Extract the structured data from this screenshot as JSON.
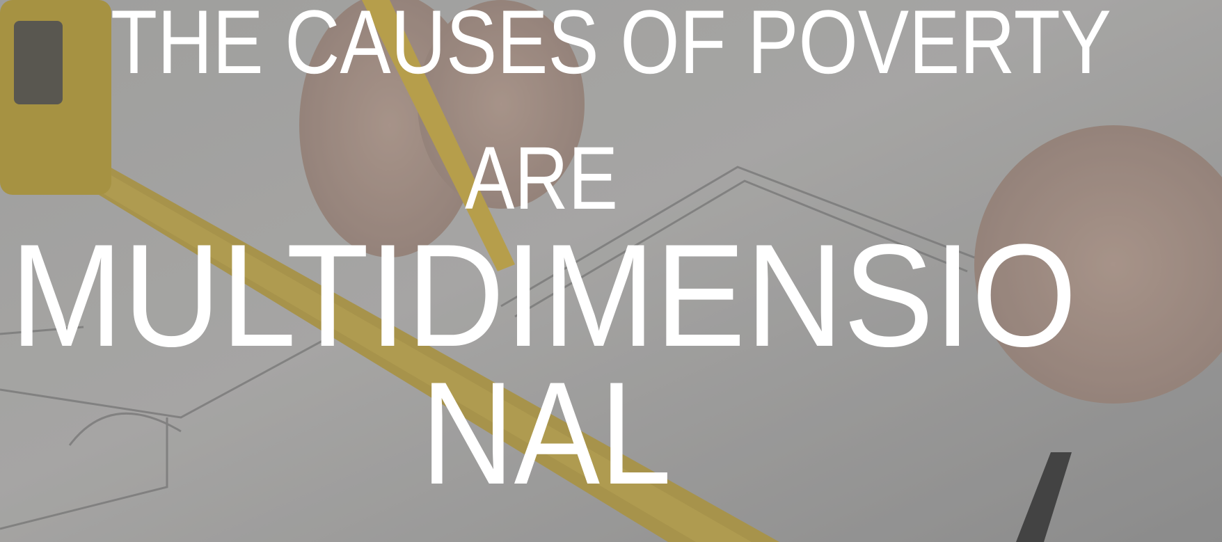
{
  "slide": {
    "lines": [
      "THE CAUSES OF POVERTY",
      "ARE",
      "MULTIDIMENSIO",
      "NAL"
    ]
  }
}
